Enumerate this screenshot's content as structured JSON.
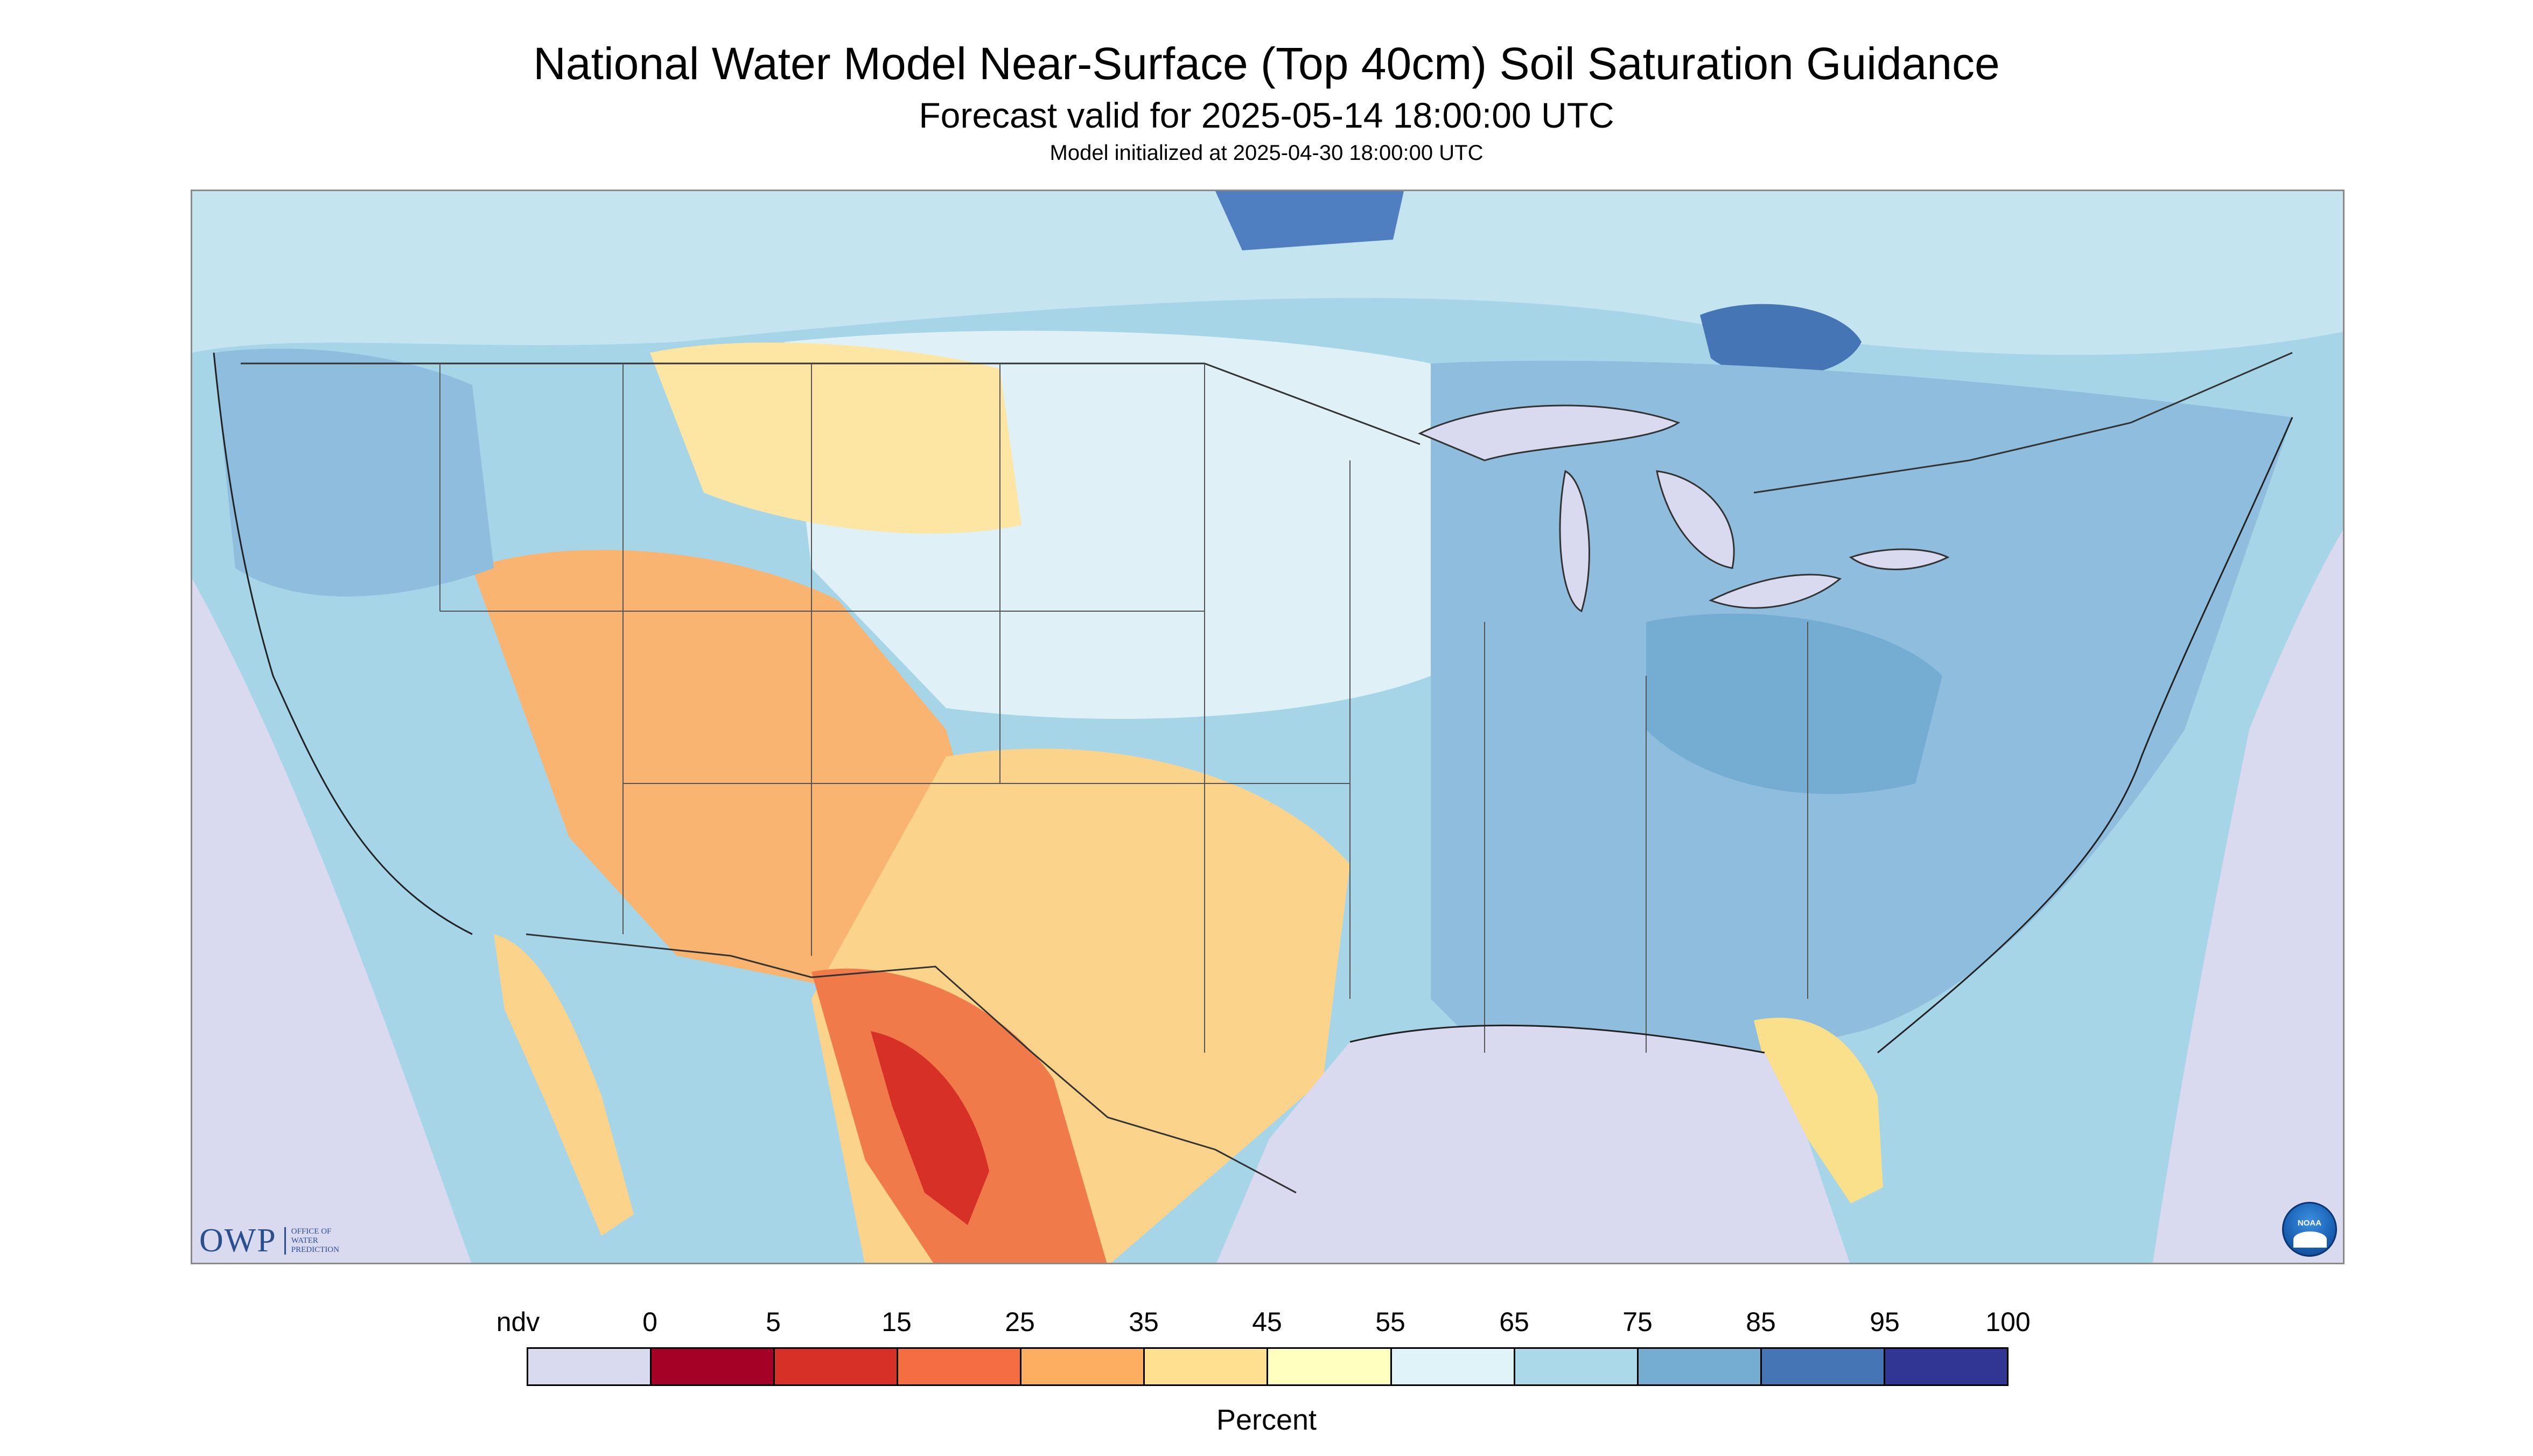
{
  "header": {
    "title": "National Water Model Near-Surface (Top 40cm) Soil Saturation Guidance",
    "subtitle": "Forecast valid for 2025-05-14 18:00:00 UTC",
    "init": "Model initialized at 2025-04-30 18:00:00 UTC"
  },
  "map": {
    "variable": "Near-Surface (Top 40cm) Soil Saturation",
    "region": "Contiguous United States",
    "background_color": "#d9d9ef",
    "regions": [
      {
        "name": "Northern Canada",
        "color": "#a6d5e8"
      },
      {
        "name": "Great Plains",
        "color": "#dff1f7"
      },
      {
        "name": "Southwest",
        "color": "#f8b470"
      },
      {
        "name": "Northern Mexico",
        "color": "#f07a4a"
      },
      {
        "name": "Eastern US",
        "color": "#8fbddd"
      },
      {
        "name": "Florida",
        "color": "#fbe08c"
      }
    ]
  },
  "logos": {
    "owp_mark": "OWP",
    "owp_text": "OFFICE OF WATER PREDICTION",
    "noaa_text": "NOAA"
  },
  "legend": {
    "unit_label": "Percent",
    "ticks": [
      "ndv",
      "0",
      "5",
      "15",
      "25",
      "35",
      "45",
      "55",
      "65",
      "75",
      "85",
      "95",
      "100"
    ],
    "colors": [
      "#d9d9ef",
      "#a50026",
      "#d73027",
      "#f46d43",
      "#fdae61",
      "#fee090",
      "#ffffbf",
      "#e0f3f8",
      "#abd9e9",
      "#74add1",
      "#4575b4",
      "#313695"
    ]
  }
}
